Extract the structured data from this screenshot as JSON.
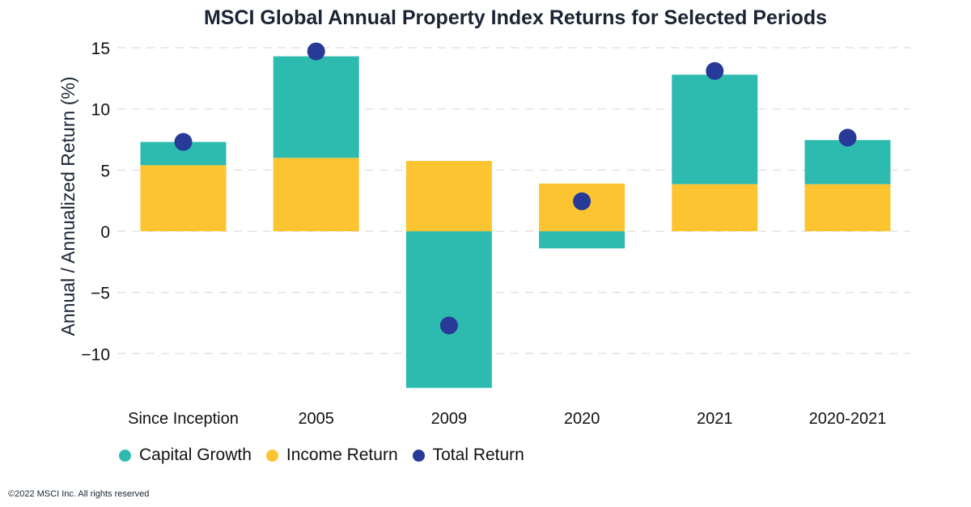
{
  "chart_data": {
    "type": "bar",
    "stacked": true,
    "title": "MSCI Global Annual Property Index Returns for Selected Periods",
    "xlabel": "",
    "ylabel": "Annual / Annualized Return (%)",
    "ylim": [
      -13.5,
      15.5
    ],
    "yticks": [
      -10,
      -5,
      0,
      5,
      10,
      15
    ],
    "ytick_labels": [
      "−10",
      "−5",
      "0",
      "5",
      "10",
      "15"
    ],
    "grid": true,
    "legend_position": "bottom-left",
    "categories": [
      "Since Inception",
      "2005",
      "2009",
      "2020",
      "2021",
      "2020-2021"
    ],
    "series": [
      {
        "name": "Capital Growth",
        "kind": "bar",
        "color": "#2ebbaf",
        "values": [
          1.9,
          8.3,
          -12.8,
          -1.4,
          8.95,
          3.6
        ]
      },
      {
        "name": "Income Return",
        "kind": "bar",
        "color": "#fdc431",
        "values": [
          5.4,
          6.0,
          5.75,
          3.9,
          3.85,
          3.85
        ]
      },
      {
        "name": "Total Return",
        "kind": "dot",
        "color": "#283a97",
        "values": [
          7.3,
          14.7,
          -7.7,
          2.45,
          13.1,
          7.65
        ]
      }
    ]
  },
  "footer": "©2022 MSCI Inc. All rights reserved"
}
